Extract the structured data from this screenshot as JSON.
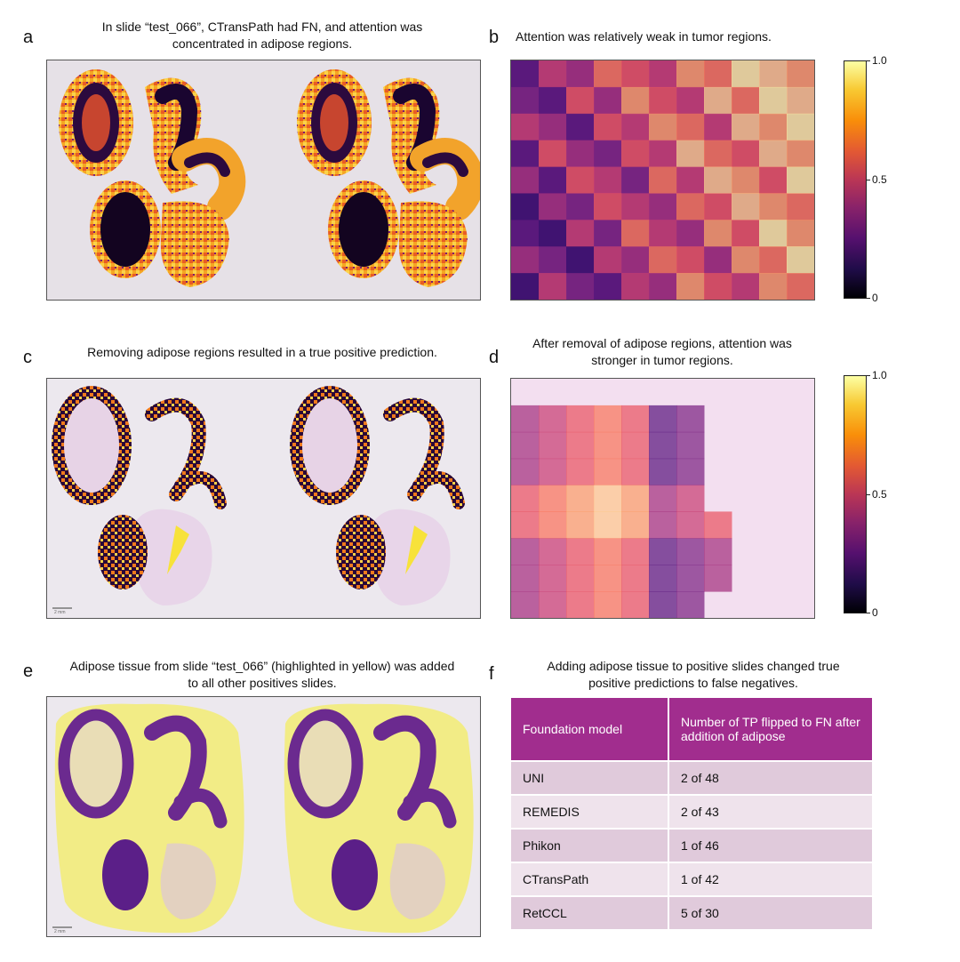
{
  "panels": {
    "a": {
      "letter": "a",
      "caption": "In slide “test_066”, CTransPath had FN, and attention was concentrated in adipose regions."
    },
    "b": {
      "letter": "b",
      "caption": "Attention was relatively weak in tumor regions."
    },
    "c": {
      "letter": "c",
      "caption": "Removing adipose regions resulted in a true positive prediction.",
      "scalebar": "2 mm"
    },
    "d": {
      "letter": "d",
      "caption": "After removal of adipose regions, attention was stronger in tumor regions."
    },
    "e": {
      "letter": "e",
      "caption": "Adipose tissue from slide “test_066” (highlighted in yellow) was added to all other positives slides.",
      "scalebar": "2 mm"
    },
    "f": {
      "letter": "f",
      "caption": "Adding adipose tissue to positive slides changed true positive predictions to false negatives."
    }
  },
  "colorbar": {
    "ticks": [
      "1.0",
      "0.5",
      "0"
    ]
  },
  "table": {
    "headers": [
      "Foundation model",
      "Number of TP flipped to FN after addition of adipose"
    ],
    "rows": [
      {
        "model": "UNI",
        "flipped": "2 of 48"
      },
      {
        "model": "REMEDIS",
        "flipped": "2 of 43"
      },
      {
        "model": "Phikon",
        "flipped": "1 of 46"
      },
      {
        "model": "CTransPath",
        "flipped": "1 of 42"
      },
      {
        "model": "RetCCL",
        "flipped": "5 of 30"
      }
    ]
  }
}
